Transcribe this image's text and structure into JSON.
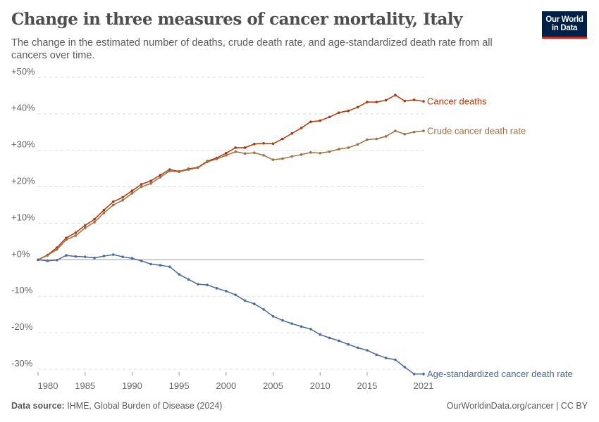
{
  "header": {
    "title": "Change in three measures of cancer mortality, Italy",
    "subtitle": "The change in the estimated number of deaths, crude death rate, and age-standardized death rate from all cancers over time.",
    "logo_line1": "Our World",
    "logo_line2": "in Data"
  },
  "footer": {
    "source_label": "Data source:",
    "source_text": "IHME, Global Burden of Disease (2024)",
    "credit": "OurWorldinData.org/cancer | CC BY"
  },
  "chart_data": {
    "type": "line",
    "title": "Change in three measures of cancer mortality, Italy",
    "xlim": [
      1980,
      2021
    ],
    "ylim": [
      -30,
      50
    ],
    "x_ticks": [
      1980,
      1985,
      1990,
      1995,
      2000,
      2005,
      2010,
      2015,
      2021
    ],
    "y_ticks": [
      50,
      40,
      30,
      20,
      10,
      0,
      -10,
      -20,
      -30
    ],
    "y_tick_labels": [
      "+50%",
      "+40%",
      "+30%",
      "+20%",
      "+10%",
      "+0%",
      "-10%",
      "-20%",
      "-30%"
    ],
    "grid": "horizontal dashed",
    "legend": "inline-right",
    "x": [
      1980,
      1981,
      1982,
      1983,
      1984,
      1985,
      1986,
      1987,
      1988,
      1989,
      1990,
      1991,
      1992,
      1993,
      1994,
      1995,
      1996,
      1997,
      1998,
      1999,
      2000,
      2001,
      2002,
      2003,
      2004,
      2005,
      2006,
      2007,
      2008,
      2009,
      2010,
      2011,
      2012,
      2013,
      2014,
      2015,
      2016,
      2017,
      2018,
      2019,
      2020,
      2021
    ],
    "series": [
      {
        "name": "Cancer deaths",
        "color": "#b13507",
        "values": [
          0,
          1.3,
          3.3,
          6.0,
          7.4,
          9.4,
          11.1,
          13.6,
          15.9,
          17.1,
          18.9,
          20.7,
          21.6,
          23.2,
          24.7,
          24.2,
          24.9,
          25.3,
          27.0,
          27.9,
          29.2,
          30.7,
          30.7,
          31.7,
          31.9,
          31.8,
          33.1,
          34.6,
          36.1,
          37.8,
          38.1,
          39.1,
          40.3,
          40.8,
          41.8,
          43.2,
          43.2,
          43.7,
          45.1,
          43.5,
          43.8,
          43.4
        ]
      },
      {
        "name": "Crude cancer death rate",
        "color": "#9a7142",
        "values": [
          0,
          1.2,
          2.8,
          5.5,
          6.6,
          8.7,
          10.3,
          12.8,
          15.0,
          16.3,
          18.2,
          20.0,
          20.9,
          22.6,
          24.3,
          24.1,
          24.7,
          25.2,
          26.8,
          27.6,
          28.6,
          29.6,
          29.1,
          29.3,
          28.6,
          27.4,
          27.7,
          28.3,
          28.8,
          29.4,
          29.2,
          29.6,
          30.3,
          30.7,
          31.6,
          32.9,
          33.1,
          33.8,
          35.3,
          34.4,
          35.0,
          35.3
        ]
      },
      {
        "name": "Age-standardized cancer death rate",
        "color": "#4c6a9c",
        "values": [
          0,
          -0.3,
          -0.1,
          1.2,
          0.9,
          0.8,
          0.5,
          1.0,
          1.4,
          0.8,
          0.4,
          -0.3,
          -1.2,
          -1.5,
          -1.9,
          -4.0,
          -5.4,
          -6.7,
          -6.9,
          -7.8,
          -8.6,
          -9.6,
          -11.2,
          -12.1,
          -13.6,
          -15.5,
          -16.6,
          -17.5,
          -18.3,
          -19.0,
          -20.5,
          -21.4,
          -22.2,
          -23.2,
          -24.1,
          -24.8,
          -26.0,
          -26.9,
          -27.4,
          -29.4,
          -31.3,
          -31.3
        ]
      }
    ]
  }
}
